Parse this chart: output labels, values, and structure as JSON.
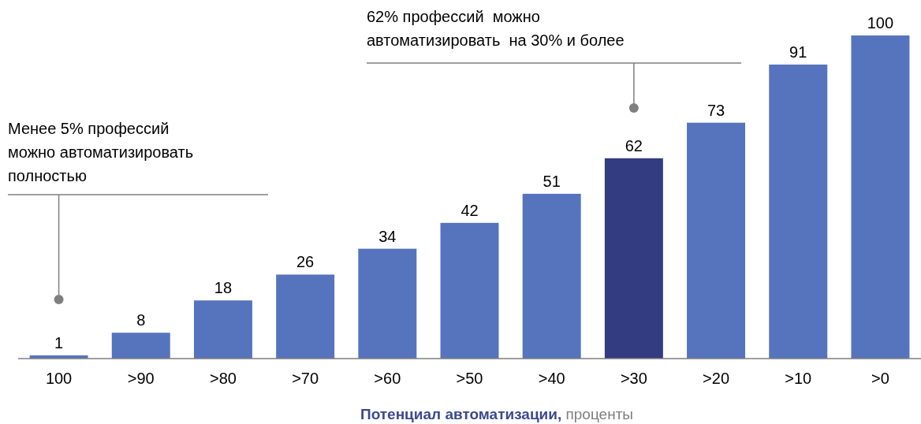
{
  "chart_data": {
    "type": "bar",
    "categories": [
      "100",
      ">90",
      ">80",
      ">70",
      ">60",
      ">50",
      ">40",
      ">30",
      ">20",
      ">10",
      ">0"
    ],
    "values": [
      1,
      8,
      18,
      26,
      34,
      42,
      51,
      62,
      73,
      91,
      100
    ],
    "colors": [
      "#5674bd",
      "#5674bd",
      "#5674bd",
      "#5674bd",
      "#5674bd",
      "#5674bd",
      "#5674bd",
      "#333c80",
      "#5674bd",
      "#5674bd",
      "#5674bd"
    ],
    "data_labels": true,
    "xlabel": "Потенциал автоматизации, проценты",
    "annotations": [
      "Менее 5% профессий\nможно автоматизировать\nполностью",
      "62% профессий  можно\nавтоматизировать  на 30% и более"
    ]
  }
}
